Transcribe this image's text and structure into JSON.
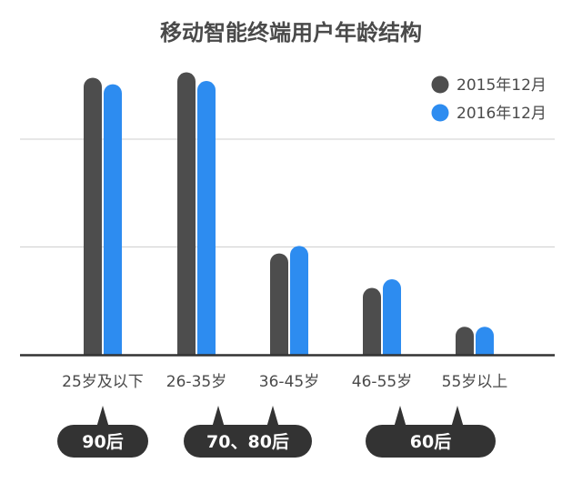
{
  "chart_data": {
    "type": "bar",
    "title": "移动智能终端用户年龄结构",
    "xlabel": "",
    "ylabel": "",
    "categories": [
      "25岁及以下",
      "26-35岁",
      "36-45岁",
      "46-55岁",
      "55岁以上"
    ],
    "series": [
      {
        "name": "2015年12月",
        "color": "#4d4d4d",
        "values": [
          25.7,
          26.2,
          9.4,
          6.2,
          2.6
        ]
      },
      {
        "name": "2016年12月",
        "color": "#2d8cf0",
        "values": [
          25.1,
          25.4,
          10.1,
          7.0,
          2.6
        ]
      }
    ],
    "ylim": [
      0,
      30
    ],
    "grid": true,
    "legend_position": "top-right",
    "annotations": [
      {
        "label": "90后",
        "categories": [
          "25岁及以下"
        ]
      },
      {
        "label": "70、80后",
        "categories": [
          "26-35岁",
          "36-45岁"
        ]
      },
      {
        "label": "60后",
        "categories": [
          "46-55岁",
          "55岁以上"
        ]
      }
    ]
  }
}
